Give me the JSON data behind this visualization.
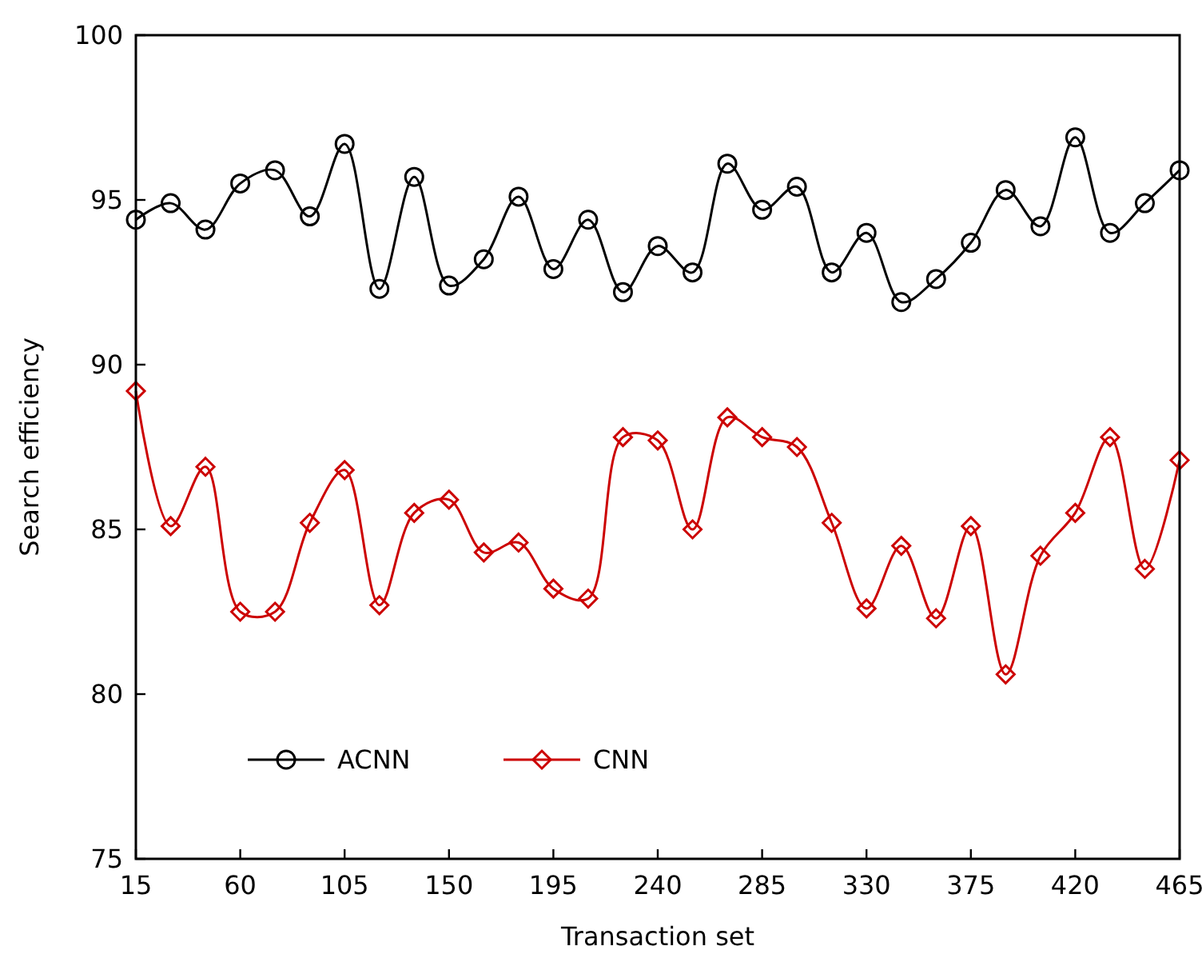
{
  "chart_data": {
    "type": "line",
    "xlabel": "Transaction set",
    "ylabel": "Search efficiency",
    "x": [
      15,
      30,
      45,
      60,
      75,
      90,
      105,
      120,
      135,
      150,
      165,
      180,
      195,
      210,
      225,
      240,
      255,
      270,
      285,
      300,
      315,
      330,
      345,
      360,
      375,
      390,
      405,
      420,
      435,
      450,
      465
    ],
    "series": [
      {
        "name": "ACNN",
        "color": "#000000",
        "marker": "circle",
        "values": [
          94.4,
          94.9,
          94.1,
          95.5,
          95.9,
          94.5,
          96.7,
          92.3,
          95.7,
          92.4,
          93.2,
          95.1,
          92.9,
          94.4,
          92.2,
          93.6,
          92.8,
          96.1,
          94.7,
          95.4,
          92.8,
          94.0,
          91.9,
          92.6,
          93.7,
          95.3,
          94.2,
          96.9,
          94.0,
          94.9,
          95.9
        ]
      },
      {
        "name": "CNN",
        "color": "#cc0000",
        "marker": "diamond",
        "values": [
          89.2,
          85.1,
          86.9,
          82.5,
          82.5,
          85.2,
          86.8,
          82.7,
          85.5,
          85.9,
          84.3,
          84.6,
          83.2,
          82.9,
          87.8,
          87.7,
          85.0,
          88.4,
          87.8,
          87.5,
          85.2,
          82.6,
          84.5,
          82.3,
          85.1,
          80.6,
          84.2,
          85.5,
          87.8,
          83.8,
          87.1
        ]
      }
    ],
    "xlim": [
      15,
      465
    ],
    "ylim": [
      75,
      100
    ],
    "xticks": [
      15,
      60,
      105,
      150,
      195,
      240,
      285,
      330,
      375,
      420,
      465
    ],
    "yticks": [
      75,
      80,
      85,
      90,
      95,
      100
    ],
    "grid": false,
    "legend": "bottom left"
  }
}
